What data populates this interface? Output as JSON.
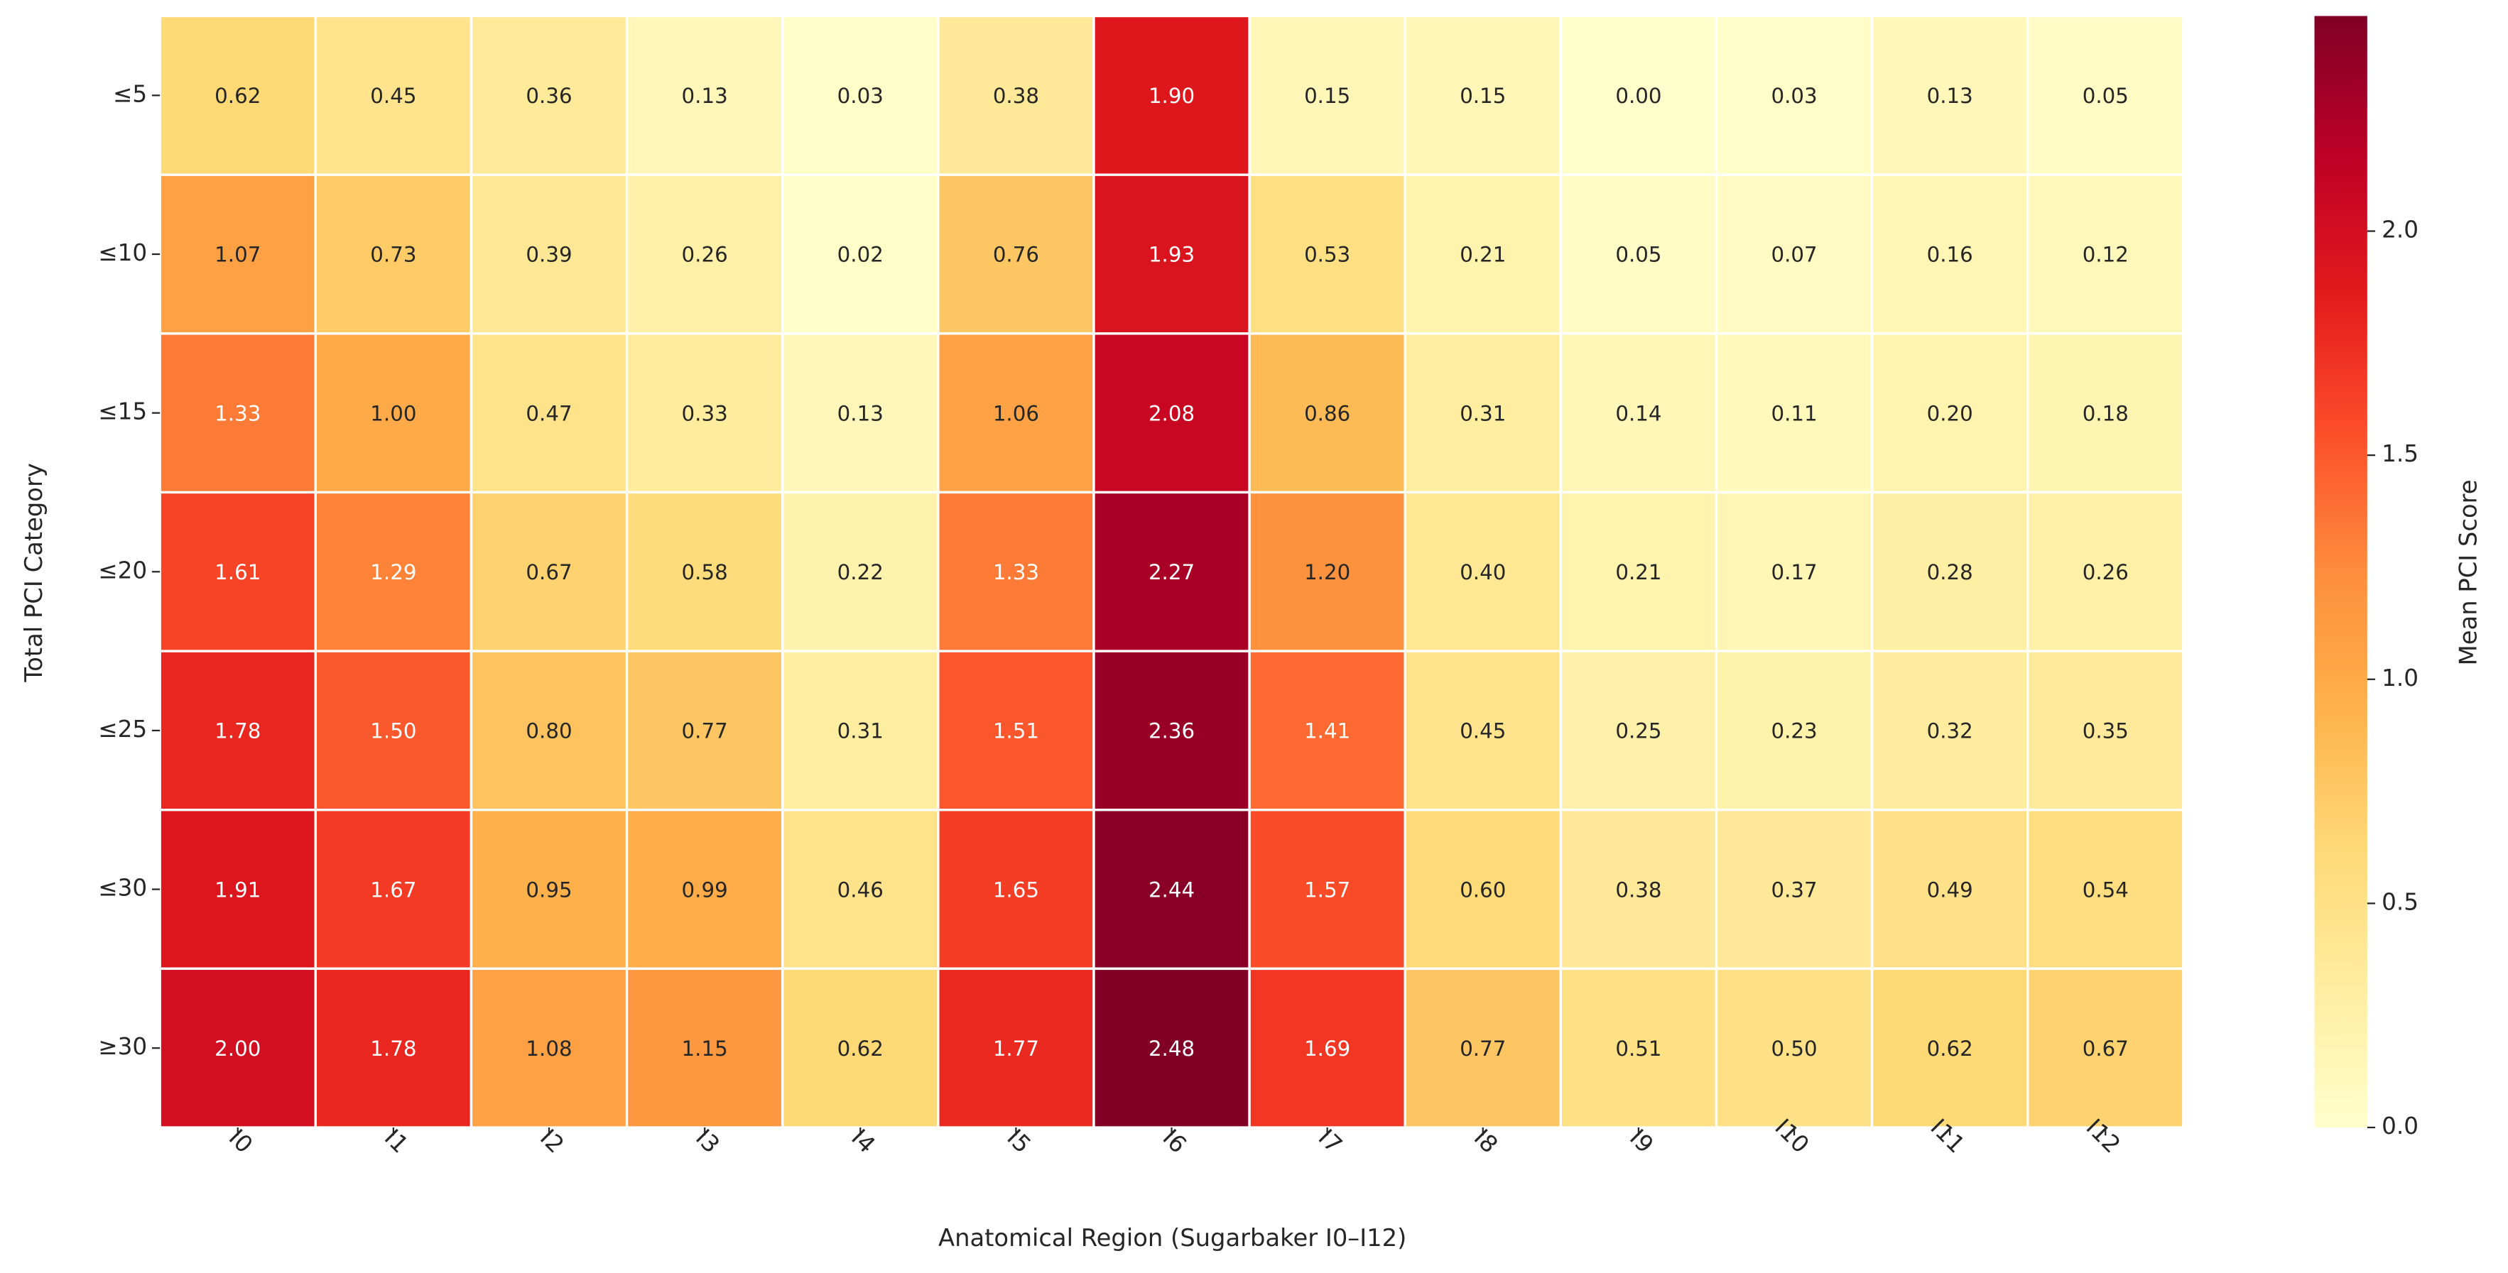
{
  "chart_data": {
    "type": "heatmap",
    "xlabel": "Anatomical Region (Sugarbaker I0–I12)",
    "ylabel": "Total PCI Category",
    "colorbar_label": "Mean PCI Score",
    "x_categories": [
      "I0",
      "I1",
      "I2",
      "I3",
      "I4",
      "I5",
      "I6",
      "I7",
      "I8",
      "I9",
      "I10",
      "I11",
      "I12"
    ],
    "y_categories": [
      "≤5",
      "≤10",
      "≤15",
      "≤20",
      "≤25",
      "≤30",
      "≥30"
    ],
    "values": [
      [
        0.62,
        0.45,
        0.36,
        0.13,
        0.03,
        0.38,
        1.9,
        0.15,
        0.15,
        0.0,
        0.03,
        0.13,
        0.05
      ],
      [
        1.07,
        0.73,
        0.39,
        0.26,
        0.02,
        0.76,
        1.93,
        0.53,
        0.21,
        0.05,
        0.07,
        0.16,
        0.12
      ],
      [
        1.33,
        1.0,
        0.47,
        0.33,
        0.13,
        1.06,
        2.08,
        0.86,
        0.31,
        0.14,
        0.11,
        0.2,
        0.18
      ],
      [
        1.61,
        1.29,
        0.67,
        0.58,
        0.22,
        1.33,
        2.27,
        1.2,
        0.4,
        0.21,
        0.17,
        0.28,
        0.26
      ],
      [
        1.78,
        1.5,
        0.8,
        0.77,
        0.31,
        1.51,
        2.36,
        1.41,
        0.45,
        0.25,
        0.23,
        0.32,
        0.35
      ],
      [
        1.91,
        1.67,
        0.95,
        0.99,
        0.46,
        1.65,
        2.44,
        1.57,
        0.6,
        0.38,
        0.37,
        0.49,
        0.54
      ],
      [
        2.0,
        1.78,
        1.08,
        1.15,
        0.62,
        1.77,
        2.48,
        1.69,
        0.77,
        0.51,
        0.5,
        0.62,
        0.67
      ]
    ],
    "value_labels": [
      [
        "0.62",
        "0.45",
        "0.36",
        "0.13",
        "0.03",
        "0.38",
        "1.90",
        "0.15",
        "0.15",
        "0.00",
        "0.03",
        "0.13",
        "0.05"
      ],
      [
        "1.07",
        "0.73",
        "0.39",
        "0.26",
        "0.02",
        "0.76",
        "1.93",
        "0.53",
        "0.21",
        "0.05",
        "0.07",
        "0.16",
        "0.12"
      ],
      [
        "1.33",
        "1.00",
        "0.47",
        "0.33",
        "0.13",
        "1.06",
        "2.08",
        "0.86",
        "0.31",
        "0.14",
        "0.11",
        "0.20",
        "0.18"
      ],
      [
        "1.61",
        "1.29",
        "0.67",
        "0.58",
        "0.22",
        "1.33",
        "2.27",
        "1.20",
        "0.40",
        "0.21",
        "0.17",
        "0.28",
        "0.26"
      ],
      [
        "1.78",
        "1.50",
        "0.80",
        "0.77",
        "0.31",
        "1.51",
        "2.36",
        "1.41",
        "0.45",
        "0.25",
        "0.23",
        "0.32",
        "0.35"
      ],
      [
        "1.91",
        "1.67",
        "0.95",
        "0.99",
        "0.46",
        "1.65",
        "2.44",
        "1.57",
        "0.60",
        "0.38",
        "0.37",
        "0.49",
        "0.54"
      ],
      [
        "2.00",
        "1.78",
        "1.08",
        "1.15",
        "0.62",
        "1.77",
        "2.48",
        "1.69",
        "0.77",
        "0.51",
        "0.50",
        "0.62",
        "0.67"
      ]
    ],
    "colormap": [
      "#ffffcc",
      "#ffeda0",
      "#fed976",
      "#feb24c",
      "#fd8d3c",
      "#fc4e2a",
      "#e31a1c",
      "#bd0026",
      "#800026"
    ],
    "zlim": [
      0,
      2.48
    ],
    "colorbar_ticks": [
      {
        "value": 0,
        "label": "0.0"
      },
      {
        "value": 0.5,
        "label": "0.5"
      },
      {
        "value": 1,
        "label": "1.0"
      },
      {
        "value": 1.5,
        "label": "1.5"
      },
      {
        "value": 2,
        "label": "2.0"
      }
    ]
  }
}
